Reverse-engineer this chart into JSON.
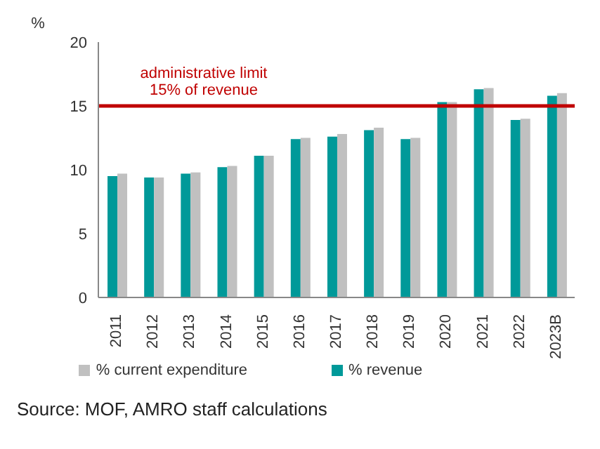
{
  "chart_data": {
    "type": "bar",
    "ylabel": "%",
    "categories": [
      "2011",
      "2012",
      "2013",
      "2014",
      "2015",
      "2016",
      "2017",
      "2018",
      "2019",
      "2020",
      "2021",
      "2022",
      "2023B"
    ],
    "series": [
      {
        "name": "% revenue",
        "color": "#009999",
        "values": [
          9.5,
          9.4,
          9.7,
          10.2,
          11.1,
          12.4,
          12.6,
          13.1,
          12.4,
          15.3,
          16.3,
          13.9,
          15.8
        ]
      },
      {
        "name": "% current expenditure",
        "color": "#c0c0c0",
        "values": [
          9.7,
          9.4,
          9.8,
          10.3,
          11.1,
          12.5,
          12.8,
          13.3,
          12.5,
          15.3,
          16.4,
          14.0,
          16.0
        ]
      }
    ],
    "ylim": [
      0,
      20
    ],
    "yticks": [
      0,
      5,
      10,
      15,
      20
    ],
    "grid": false,
    "legend": "bottom",
    "ref_lines": [
      {
        "axis": "y",
        "value": 15,
        "label": "administrative limit\n15% of revenue",
        "color": "#c00000"
      }
    ],
    "annotations": [
      "Source: MOF, AMRO staff calculations"
    ]
  }
}
